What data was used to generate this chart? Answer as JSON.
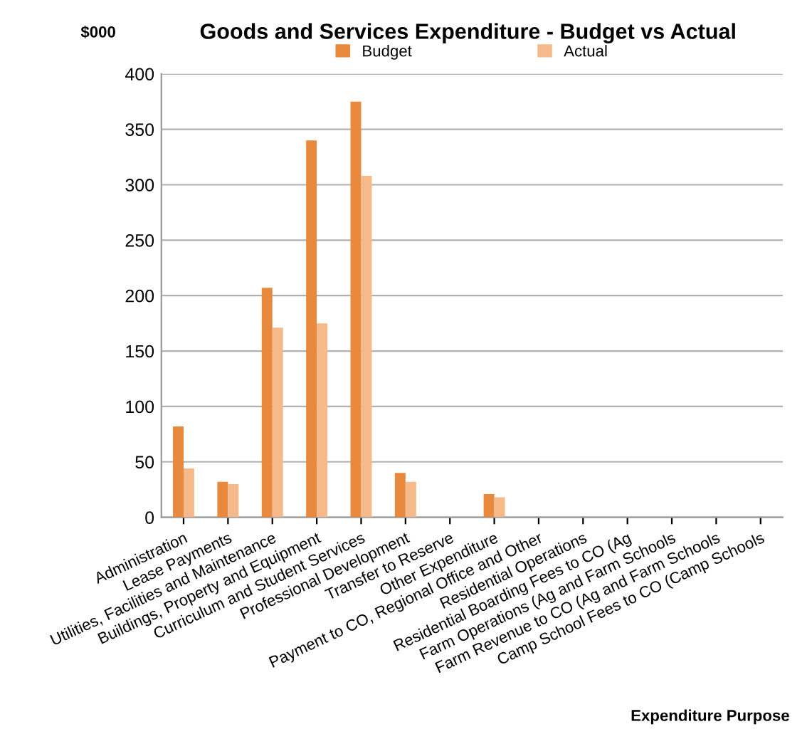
{
  "chart_data": {
    "type": "bar",
    "title": "Goods and Services Expenditure - Budget vs Actual",
    "ylabel": "$000",
    "xlabel": "Expenditure Purpose",
    "categories": [
      "Administration",
      "Lease Payments",
      "Utilities, Facilities and Maintenance",
      "Buildings, Property and Equipment",
      "Curriculum and Student Services",
      "Professional Development",
      "Transfer to Reserve",
      "Other Expenditure",
      "Payment to CO, Regional Office and Other",
      "Residential Operations",
      "Residential Boarding Fees to CO (Ag",
      "Farm Operations (Ag and Farm Schools",
      "Farm Revenue to CO (Ag and Farm Schools",
      "Camp School Fees to CO (Camp Schools"
    ],
    "series": [
      {
        "name": "Budget",
        "color": "#e8893e",
        "values": [
          82,
          32,
          207,
          340,
          375,
          40,
          0,
          21,
          0,
          0,
          0,
          0,
          0,
          0
        ]
      },
      {
        "name": "Actual",
        "color": "#f5b98a",
        "values": [
          44,
          30,
          171,
          175,
          308,
          32,
          0,
          18,
          0,
          0,
          0,
          0,
          0,
          0
        ]
      }
    ],
    "ylim": [
      0,
      400
    ],
    "yticks": [
      0,
      50,
      100,
      150,
      200,
      250,
      300,
      350,
      400
    ],
    "grid": "y",
    "legend": "top"
  }
}
